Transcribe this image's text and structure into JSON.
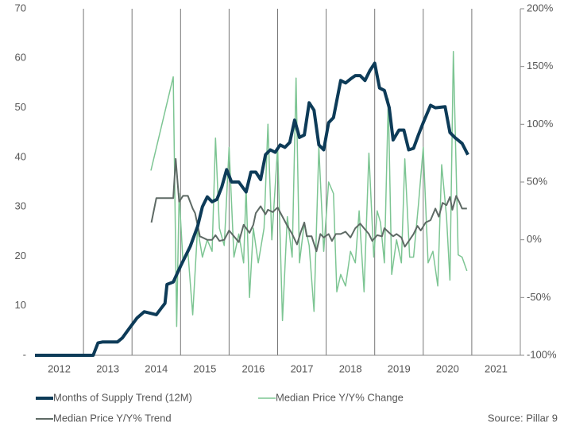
{
  "chart_data": {
    "type": "line",
    "ylim": [
      0,
      70
    ],
    "yticks": [
      {
        "value": 0,
        "label": "-"
      },
      10,
      20,
      30,
      40,
      50,
      60,
      70
    ],
    "y2lim": [
      -100,
      200
    ],
    "y2ticks": [
      {
        "value": -100,
        "label": "-100%"
      },
      {
        "value": -50,
        "label": "-50%"
      },
      {
        "value": 0,
        "label": "0%"
      },
      {
        "value": 50,
        "label": "50%"
      },
      {
        "value": 100,
        "label": "100%"
      },
      {
        "value": 150,
        "label": "150%"
      },
      {
        "value": 200,
        "label": "200%"
      }
    ],
    "xlim": [
      2012,
      2022
    ],
    "xticks": [
      2013,
      2014,
      2015,
      2016,
      2017,
      2018,
      2019,
      2020,
      2021
    ],
    "year_labels": [
      "2012",
      "2013",
      "2014",
      "2015",
      "2016",
      "2017",
      "2018",
      "2019",
      "2020",
      "2021"
    ],
    "grid": true,
    "source": "Source: Pillar 9",
    "series": [
      {
        "name": "Months of Supply Trend (12M)",
        "color": "#0d3b58",
        "axis": "y",
        "x": [
          2012.0,
          2013.2,
          2013.3,
          2013.4,
          2013.7,
          2013.8,
          2013.95,
          2014.1,
          2014.25,
          2014.5,
          2014.6,
          2014.68,
          2014.72,
          2014.85,
          2015.0,
          2015.2,
          2015.35,
          2015.45,
          2015.55,
          2015.65,
          2015.75,
          2015.85,
          2015.95,
          2016.05,
          2016.2,
          2016.35,
          2016.45,
          2016.55,
          2016.65,
          2016.75,
          2016.85,
          2016.95,
          2017.05,
          2017.15,
          2017.25,
          2017.35,
          2017.45,
          2017.55,
          2017.65,
          2017.75,
          2017.85,
          2017.95,
          2018.05,
          2018.15,
          2018.3,
          2018.4,
          2018.5,
          2018.6,
          2018.7,
          2018.8,
          2018.9,
          2019.0,
          2019.1,
          2019.2,
          2019.3,
          2019.38,
          2019.5,
          2019.6,
          2019.7,
          2019.8,
          2019.9,
          2020.0,
          2020.15,
          2020.25,
          2020.45,
          2020.55,
          2020.65,
          2020.8,
          2020.92
        ],
        "values": [
          0,
          0,
          2.5,
          2.7,
          2.7,
          3.5,
          5.5,
          7.5,
          8.8,
          8.2,
          9.5,
          10.5,
          14.3,
          14.8,
          18,
          22,
          26,
          30,
          32,
          31,
          31.5,
          34,
          37.5,
          35,
          35,
          33,
          37,
          37,
          35.5,
          40.5,
          41.5,
          41,
          42.5,
          42,
          43,
          47.5,
          44,
          44.5,
          51,
          49.5,
          42.5,
          41.5,
          47,
          48,
          55.5,
          55,
          55.8,
          56.5,
          56.5,
          55.5,
          57.5,
          59,
          54,
          53.5,
          50,
          43.5,
          45.5,
          45.5,
          41.5,
          41.8,
          44.5,
          47,
          50.5,
          50,
          50.2,
          45,
          44,
          42.8,
          40.5
        ]
      },
      {
        "name": "Median Price Y/Y% Change",
        "color": "#7dc593",
        "axis": "y2",
        "x": [
          2014.39,
          2014.85,
          2014.92,
          2014.97,
          2015.05,
          2015.15,
          2015.25,
          2015.35,
          2015.45,
          2015.55,
          2015.65,
          2015.72,
          2015.8,
          2015.9,
          2016.0,
          2016.1,
          2016.2,
          2016.3,
          2016.35,
          2016.42,
          2016.5,
          2016.6,
          2016.72,
          2016.8,
          2016.88,
          2017.0,
          2017.1,
          2017.2,
          2017.3,
          2017.38,
          2017.45,
          2017.55,
          2017.65,
          2017.75,
          2017.85,
          2017.95,
          2018.05,
          2018.15,
          2018.22,
          2018.3,
          2018.4,
          2018.5,
          2018.6,
          2018.68,
          2018.78,
          2018.88,
          2018.98,
          2019.05,
          2019.12,
          2019.2,
          2019.28,
          2019.35,
          2019.45,
          2019.55,
          2019.62,
          2019.72,
          2019.8,
          2019.9,
          2020.0,
          2020.1,
          2020.2,
          2020.3,
          2020.38,
          2020.48,
          2020.55,
          2020.62,
          2020.72,
          2020.8,
          2020.9
        ],
        "values": [
          60,
          141,
          -75,
          40,
          -20,
          -10,
          -65,
          10,
          -15,
          0,
          -10,
          88,
          10,
          -5,
          80,
          -15,
          5,
          -20,
          45,
          -50,
          10,
          -20,
          10,
          100,
          0,
          80,
          -70,
          20,
          -15,
          140,
          -20,
          15,
          -5,
          -62,
          80,
          -10,
          50,
          40,
          -45,
          -30,
          -40,
          -10,
          -20,
          25,
          -45,
          75,
          -15,
          25,
          15,
          -20,
          122,
          -30,
          0,
          -20,
          70,
          -15,
          -15,
          30,
          80,
          -20,
          -10,
          -40,
          65,
          20,
          -35,
          163,
          -13,
          -15,
          -27
        ]
      },
      {
        "name": "Median Price Y/Y% Trend",
        "color": "#5e6a65",
        "axis": "y2",
        "x": [
          2014.4,
          2014.5,
          2014.85,
          2014.9,
          2014.97,
          2015.05,
          2015.15,
          2015.25,
          2015.3,
          2015.4,
          2015.55,
          2015.65,
          2015.72,
          2015.8,
          2015.9,
          2016.0,
          2016.1,
          2016.2,
          2016.3,
          2016.42,
          2016.5,
          2016.55,
          2016.65,
          2016.75,
          2016.8,
          2016.9,
          2017.0,
          2017.1,
          2017.2,
          2017.3,
          2017.4,
          2017.48,
          2017.55,
          2017.6,
          2017.7,
          2017.8,
          2017.88,
          2017.95,
          2018.05,
          2018.12,
          2018.2,
          2018.3,
          2018.4,
          2018.5,
          2018.6,
          2018.7,
          2018.8,
          2018.88,
          2018.95,
          2019.05,
          2019.15,
          2019.2,
          2019.3,
          2019.38,
          2019.45,
          2019.55,
          2019.62,
          2019.72,
          2019.8,
          2019.88,
          2019.95,
          2020.05,
          2020.15,
          2020.25,
          2020.32,
          2020.4,
          2020.48,
          2020.55,
          2020.6,
          2020.68,
          2020.75,
          2020.8,
          2020.9
        ],
        "values": [
          15,
          36,
          36,
          70,
          33,
          38,
          38,
          27,
          23,
          3,
          0,
          0,
          4,
          -1,
          0,
          8,
          3,
          -2,
          13,
          6,
          13,
          23,
          29,
          22,
          26,
          24,
          28,
          20,
          12,
          5,
          -4,
          7,
          15,
          3,
          3,
          -10,
          5,
          2,
          5,
          -1,
          5,
          5,
          7,
          2,
          10,
          14,
          9,
          5,
          -1,
          4,
          3,
          10,
          6,
          3,
          5,
          2,
          -6,
          0,
          5,
          12,
          8,
          15,
          17,
          27,
          20,
          32,
          30,
          37,
          26,
          38,
          32,
          27,
          27
        ]
      }
    ]
  }
}
